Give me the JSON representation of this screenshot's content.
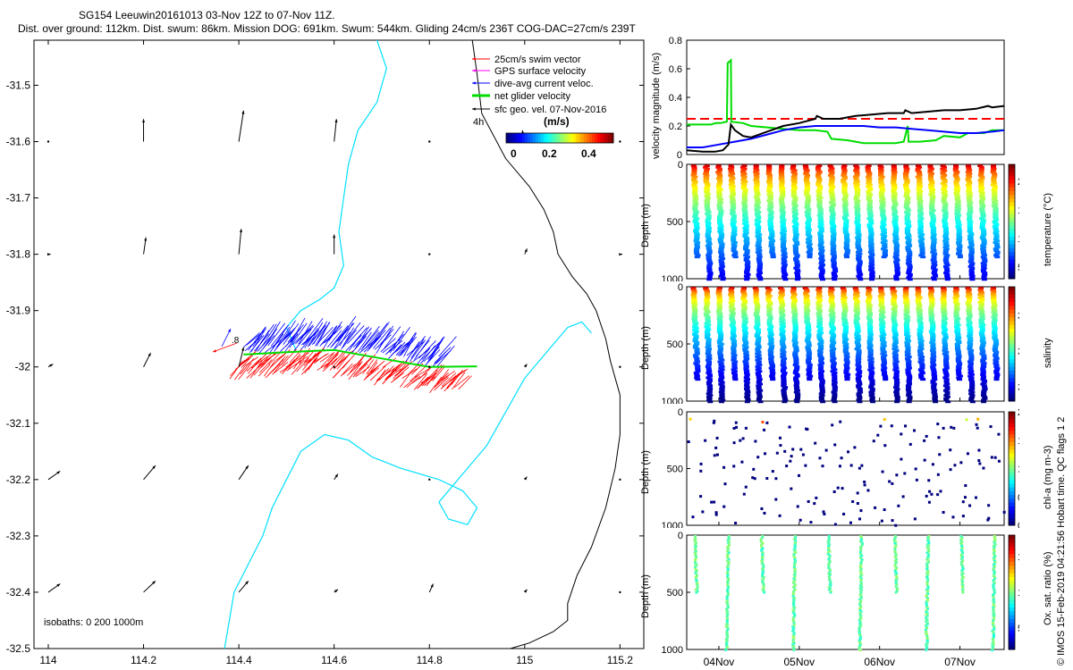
{
  "header": {
    "title_line1": "SG154 Leeuwin20161013 03-Nov 12Z to 07-Nov 11Z.",
    "title_line2": "Dist. over ground: 112km. Dist. swum: 86km. Mission DOG: 691km. Swum: 544km. Gliding 24cm/s 236T COG-DAC=27cm/s 239T"
  },
  "footer": {
    "credit": "© IMOS 15-Feb-2019 04:21:56 Hobart time. QC flags 1  2"
  },
  "colors": {
    "swim": "#ff0000",
    "gps": "#ff00ff",
    "dac": "#0000ff",
    "net": "#00dd00",
    "sfc": "#000000",
    "coast": "#000000",
    "isobath": "#00e0ff",
    "threshold": "#ff0000"
  },
  "chart_data": [
    {
      "type": "map",
      "xlim": [
        113.97,
        115.25
      ],
      "ylim": [
        -32.5,
        -31.42
      ],
      "xticks": [
        114,
        114.2,
        114.4,
        114.6,
        114.8,
        115,
        115.2
      ],
      "xtick_labels": [
        "114",
        "114.2",
        "114.4",
        "114.6",
        "114.8",
        "115",
        "115.2"
      ],
      "yticks": [
        -31.5,
        -31.6,
        -31.7,
        -31.8,
        -31.9,
        -32,
        -32.1,
        -32.2,
        -32.3,
        -32.4,
        -32.5
      ],
      "ytick_labels": [
        "-31.5",
        "-31.6",
        "-31.7",
        "-31.8",
        "-31.9",
        "-32",
        "-32.1",
        "-32.2",
        "-32.3",
        "-32.4",
        "-32.5"
      ],
      "legend": {
        "entries": [
          "25cm/s swim vector",
          "GPS surface velocity",
          "dive-avg current veloc.",
          "net glider velocity",
          "sfc geo. vel. 07-Nov-2016"
        ],
        "time_label": "4h",
        "colorbar_title": "(m/s)",
        "colorbar_ticks": [
          "0",
          "0.2",
          "0.4"
        ],
        "colorbar_range": [
          0,
          0.5
        ]
      },
      "isobath_label": "isobaths: 0   200  1000m",
      "point_label": ".8",
      "track": [
        [
          114.41,
          -31.978
        ],
        [
          114.5,
          -31.974
        ],
        [
          114.6,
          -31.97
        ],
        [
          114.7,
          -31.985
        ],
        [
          114.8,
          -32.0
        ],
        [
          114.9,
          -31.999
        ]
      ],
      "sfc_vectors": [
        [
          114.0,
          -31.6,
          0.0,
          0.0
        ],
        [
          114.2,
          -31.6,
          0.0,
          0.04
        ],
        [
          114.4,
          -31.6,
          0.01,
          0.055
        ],
        [
          114.6,
          -31.6,
          0.005,
          0.04
        ],
        [
          114.8,
          -31.6,
          0.0,
          0.0
        ],
        [
          115.0,
          -31.6,
          -0.005,
          0.02
        ],
        [
          115.2,
          -31.6,
          0.0,
          0.0
        ],
        [
          114.0,
          -31.8,
          0.005,
          0.0
        ],
        [
          114.2,
          -31.8,
          0.005,
          0.03
        ],
        [
          114.4,
          -31.8,
          0.005,
          0.045
        ],
        [
          114.6,
          -31.8,
          0.0,
          0.035
        ],
        [
          114.8,
          -31.8,
          0.0,
          0.0
        ],
        [
          115.0,
          -31.8,
          0.005,
          0.01
        ],
        [
          115.2,
          -31.8,
          0.005,
          0.0
        ],
        [
          114.0,
          -32.0,
          0.01,
          0.005
        ],
        [
          114.2,
          -32.0,
          0.015,
          0.025
        ],
        [
          114.4,
          -32.0,
          0.01,
          0.035
        ],
        [
          114.6,
          -32.0,
          0.0,
          0.0
        ],
        [
          114.8,
          -32.0,
          0.0,
          0.0
        ],
        [
          115.0,
          -32.0,
          0.005,
          0.005
        ],
        [
          115.2,
          -32.0,
          0.0,
          0.0
        ],
        [
          114.0,
          -32.2,
          0.025,
          0.015
        ],
        [
          114.2,
          -32.2,
          0.025,
          0.025
        ],
        [
          114.4,
          -32.2,
          0.02,
          0.025
        ],
        [
          114.6,
          -32.2,
          0.008,
          0.01
        ],
        [
          114.8,
          -32.2,
          0.0,
          0.0
        ],
        [
          115.0,
          -32.2,
          0.005,
          0.005
        ],
        [
          115.2,
          -32.2,
          0.0,
          0.0
        ],
        [
          114.0,
          -32.4,
          0.025,
          0.015
        ],
        [
          114.2,
          -32.4,
          0.025,
          0.02
        ],
        [
          114.4,
          -32.4,
          0.02,
          0.02
        ],
        [
          114.6,
          -32.4,
          0.008,
          0.005
        ],
        [
          114.8,
          -32.4,
          0.008,
          0.015
        ],
        [
          115.0,
          -32.4,
          0.005,
          0.005
        ],
        [
          115.2,
          -32.4,
          0.0,
          0.0
        ]
      ],
      "coast_line": [
        [
          114.89,
          -31.42
        ],
        [
          114.9,
          -31.48
        ],
        [
          114.91,
          -31.55
        ],
        [
          114.96,
          -31.63
        ],
        [
          115.01,
          -31.68
        ],
        [
          115.04,
          -31.72
        ],
        [
          115.06,
          -31.76
        ],
        [
          115.07,
          -31.8
        ],
        [
          115.1,
          -31.84
        ],
        [
          115.13,
          -31.87
        ],
        [
          115.15,
          -31.9
        ],
        [
          115.17,
          -31.95
        ],
        [
          115.18,
          -31.99
        ],
        [
          115.2,
          -32.05
        ],
        [
          115.2,
          -32.12
        ],
        [
          115.19,
          -32.18
        ],
        [
          115.17,
          -32.25
        ],
        [
          115.14,
          -32.32
        ],
        [
          115.11,
          -32.37
        ],
        [
          115.09,
          -32.42
        ],
        [
          115.09,
          -32.45
        ],
        [
          115.06,
          -32.47
        ],
        [
          115.01,
          -32.49
        ],
        [
          114.97,
          -32.5
        ]
      ],
      "isobath_lines": [
        [
          [
            114.69,
            -31.42
          ],
          [
            114.71,
            -31.47
          ],
          [
            114.69,
            -31.53
          ],
          [
            114.65,
            -31.58
          ],
          [
            114.63,
            -31.64
          ],
          [
            114.62,
            -31.7
          ],
          [
            114.61,
            -31.76
          ],
          [
            114.62,
            -31.82
          ],
          [
            114.6,
            -31.86
          ],
          [
            114.57,
            -31.88
          ],
          [
            114.53,
            -31.9
          ],
          [
            114.5,
            -31.93
          ],
          [
            114.52,
            -31.97
          ]
        ],
        [
          [
            114.37,
            -32.5
          ],
          [
            114.38,
            -32.45
          ],
          [
            114.39,
            -32.4
          ],
          [
            114.42,
            -32.35
          ],
          [
            114.45,
            -32.3
          ],
          [
            114.47,
            -32.25
          ],
          [
            114.5,
            -32.2
          ],
          [
            114.53,
            -32.15
          ],
          [
            114.58,
            -32.12
          ],
          [
            114.63,
            -32.13
          ],
          [
            114.68,
            -32.16
          ],
          [
            114.74,
            -32.18
          ],
          [
            114.82,
            -32.2
          ],
          [
            114.87,
            -32.22
          ],
          [
            114.9,
            -32.25
          ],
          [
            114.88,
            -32.28
          ],
          [
            114.84,
            -32.27
          ],
          [
            114.82,
            -32.24
          ],
          [
            114.86,
            -32.2
          ],
          [
            114.92,
            -32.14
          ],
          [
            114.96,
            -32.08
          ],
          [
            115.0,
            -32.02
          ],
          [
            115.05,
            -31.97
          ],
          [
            115.09,
            -31.93
          ],
          [
            115.12,
            -31.92
          ],
          [
            115.14,
            -31.94
          ]
        ]
      ]
    },
    {
      "type": "line",
      "ylabel": "velocity magnitude (m/s)",
      "ylim": [
        0,
        0.8
      ],
      "yticks": [
        0,
        0.2,
        0.4,
        0.6,
        0.8
      ],
      "ytick_labels": [
        "0",
        "0.2",
        "0.4",
        "0.6",
        "0.8"
      ],
      "x_range_days": [
        3.6,
        7.55
      ],
      "reference_line": 0.25,
      "series": [
        {
          "name": "net glider velocity",
          "color": "#00dd00",
          "points": [
            [
              3.6,
              0.21
            ],
            [
              3.9,
              0.21
            ],
            [
              3.96,
              0.22
            ],
            [
              4.02,
              0.22
            ],
            [
              4.1,
              0.23
            ],
            [
              4.11,
              0.64
            ],
            [
              4.15,
              0.66
            ],
            [
              4.155,
              0.23
            ],
            [
              4.3,
              0.22
            ],
            [
              4.4,
              0.2
            ],
            [
              4.6,
              0.19
            ],
            [
              4.8,
              0.18
            ],
            [
              5.0,
              0.17
            ],
            [
              5.2,
              0.17
            ],
            [
              5.35,
              0.16
            ],
            [
              5.4,
              0.11
            ],
            [
              5.6,
              0.1
            ],
            [
              5.8,
              0.08
            ],
            [
              6.0,
              0.08
            ],
            [
              6.2,
              0.08
            ],
            [
              6.3,
              0.09
            ],
            [
              6.35,
              0.2
            ],
            [
              6.36,
              0.09
            ],
            [
              6.5,
              0.09
            ],
            [
              6.7,
              0.1
            ],
            [
              6.8,
              0.13
            ],
            [
              7.0,
              0.12
            ],
            [
              7.1,
              0.15
            ],
            [
              7.3,
              0.15
            ],
            [
              7.4,
              0.17
            ],
            [
              7.55,
              0.17
            ]
          ]
        },
        {
          "name": "dive-avg current veloc.",
          "color": "#0000ff",
          "points": [
            [
              3.6,
              0.05
            ],
            [
              3.8,
              0.05
            ],
            [
              4.0,
              0.07
            ],
            [
              4.2,
              0.09
            ],
            [
              4.4,
              0.11
            ],
            [
              4.6,
              0.14
            ],
            [
              4.8,
              0.17
            ],
            [
              5.0,
              0.19
            ],
            [
              5.2,
              0.2
            ],
            [
              5.4,
              0.2
            ],
            [
              5.6,
              0.2
            ],
            [
              5.8,
              0.2
            ],
            [
              6.0,
              0.19
            ],
            [
              6.2,
              0.19
            ],
            [
              6.4,
              0.18
            ],
            [
              6.6,
              0.17
            ],
            [
              6.8,
              0.16
            ],
            [
              7.0,
              0.15
            ],
            [
              7.2,
              0.15
            ],
            [
              7.4,
              0.16
            ],
            [
              7.55,
              0.17
            ]
          ]
        },
        {
          "name": "sfc geo. vel.",
          "color": "#000000",
          "points": [
            [
              3.6,
              0.03
            ],
            [
              3.8,
              0.02
            ],
            [
              3.95,
              0.02
            ],
            [
              4.05,
              0.03
            ],
            [
              4.12,
              0.07
            ],
            [
              4.15,
              0.21
            ],
            [
              4.2,
              0.17
            ],
            [
              4.3,
              0.13
            ],
            [
              4.4,
              0.12
            ],
            [
              4.6,
              0.16
            ],
            [
              4.8,
              0.2
            ],
            [
              5.0,
              0.22
            ],
            [
              5.2,
              0.25
            ],
            [
              5.22,
              0.27
            ],
            [
              5.3,
              0.25
            ],
            [
              5.5,
              0.25
            ],
            [
              5.7,
              0.27
            ],
            [
              5.9,
              0.28
            ],
            [
              6.1,
              0.29
            ],
            [
              6.3,
              0.29
            ],
            [
              6.32,
              0.31
            ],
            [
              6.4,
              0.29
            ],
            [
              6.6,
              0.3
            ],
            [
              6.8,
              0.31
            ],
            [
              7.0,
              0.31
            ],
            [
              7.2,
              0.32
            ],
            [
              7.35,
              0.34
            ],
            [
              7.4,
              0.33
            ],
            [
              7.55,
              0.34
            ]
          ]
        }
      ]
    },
    {
      "type": "scatter",
      "variable": "temperature",
      "ylabel": "Depth (m)",
      "colorbar_label": "temperature (°C)",
      "ylim": [
        1000,
        0
      ],
      "yticks": [
        0,
        500,
        1000
      ],
      "ytick_labels": [
        "0",
        "500",
        "1000"
      ],
      "color_range": [
        3,
        23
      ],
      "colorbar_ticks": [
        5,
        10,
        15,
        20
      ],
      "colorbar_tick_labels": [
        "5",
        "10",
        "15",
        "20"
      ],
      "n_profiles": 25,
      "max_depth": 1000
    },
    {
      "type": "scatter",
      "variable": "salinity",
      "ylabel": "Depth (m)",
      "colorbar_label": "salinity",
      "ylim": [
        1000,
        0
      ],
      "yticks": [
        0,
        500,
        1000
      ],
      "ytick_labels": [
        "0",
        "500",
        "1000"
      ],
      "color_range": [
        34.3,
        35.9
      ],
      "colorbar_ticks": [
        34.5,
        35,
        35.5
      ],
      "colorbar_tick_labels": [
        "34.5",
        "35",
        "35.5"
      ],
      "n_profiles": 25,
      "max_depth": 1000
    },
    {
      "type": "scatter",
      "variable": "chl-a",
      "ylabel": "Depth (m)",
      "colorbar_label": "chl-a (mg m-3)",
      "ylim": [
        1000,
        0
      ],
      "yticks": [
        0,
        500,
        1000
      ],
      "ytick_labels": [
        "0",
        "500",
        "1000"
      ],
      "color_range": [
        0,
        2
      ],
      "colorbar_ticks": [
        0,
        0.5,
        1,
        1.5,
        2
      ],
      "colorbar_tick_labels": [
        "0",
        "0.5",
        "1",
        "1.5",
        "2"
      ],
      "n_profiles": 25,
      "max_depth": 1000
    },
    {
      "type": "scatter",
      "variable": "oxygen",
      "ylabel": "Depth (m)",
      "colorbar_label": "Ox. sat. ratio (%)",
      "ylim": [
        1000,
        0
      ],
      "yticks": [
        0,
        500,
        1000
      ],
      "ytick_labels": [
        "0",
        "500",
        "1000"
      ],
      "color_range": [
        20,
        180
      ],
      "colorbar_ticks": [
        50,
        100,
        150
      ],
      "colorbar_tick_labels": [
        "50",
        "100",
        "150"
      ],
      "n_profiles": 10,
      "max_depth": 1000,
      "xtick_labels": [
        "04Nov",
        "05Nov",
        "06Nov",
        "07Nov"
      ]
    }
  ]
}
